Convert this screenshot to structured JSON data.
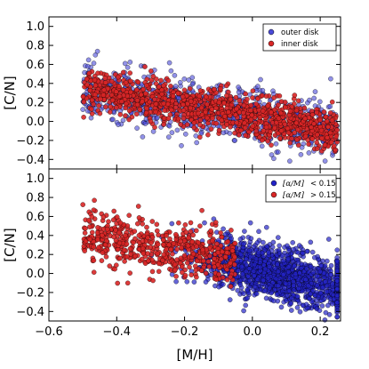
{
  "chart_data": [
    {
      "type": "scatter",
      "panel": "top",
      "ylabel": "[C/N]",
      "xlim": [
        -0.6,
        0.26
      ],
      "ylim": [
        -0.5,
        1.1
      ],
      "y_ticks": [
        "−0.4",
        "−0.2",
        "0.0",
        "0.2",
        "0.4",
        "0.6",
        "0.8",
        "1.0"
      ],
      "y_tick_values": [
        -0.4,
        -0.2,
        0.0,
        0.2,
        0.4,
        0.6,
        0.8,
        1.0
      ],
      "grid": false,
      "legend_position": "top-right",
      "series": [
        {
          "name": "outer disk",
          "color": "#4a4ad9",
          "alpha": 0.6,
          "count": 900,
          "x_range": [
            -0.5,
            0.25
          ],
          "trend": {
            "slope": -0.55,
            "intercept": 0.05
          },
          "scatter_sd": 0.14
        },
        {
          "name": "inner disk",
          "color": "#d92626",
          "alpha": 0.9,
          "count": 1100,
          "x_range": [
            -0.5,
            0.25
          ],
          "trend": {
            "slope": -0.6,
            "intercept": 0.05
          },
          "scatter_sd": 0.11
        }
      ]
    },
    {
      "type": "scatter",
      "panel": "bottom",
      "xlabel": "[M/H]",
      "ylabel": "[C/N]",
      "xlim": [
        -0.6,
        0.26
      ],
      "ylim": [
        -0.5,
        1.1
      ],
      "x_ticks": [
        "−0.6",
        "−0.4",
        "−0.2",
        "0.0",
        "0.2"
      ],
      "x_tick_values": [
        -0.6,
        -0.4,
        -0.2,
        0.0,
        0.2
      ],
      "y_ticks": [
        "−0.4",
        "−0.2",
        "0.0",
        "0.2",
        "0.4",
        "0.6",
        "0.8",
        "1.0"
      ],
      "y_tick_values": [
        -0.4,
        -0.2,
        0.0,
        0.2,
        0.4,
        0.6,
        0.8,
        1.0
      ],
      "grid": false,
      "legend_position": "top-right",
      "series": [
        {
          "name_math": "[α/M]",
          "name_rel": "< 0.15",
          "color": "#2323c8",
          "alpha": 0.7,
          "count": 1500,
          "x_range": [
            -0.25,
            0.25
          ],
          "trend": {
            "slope": -0.7,
            "intercept": 0.05
          },
          "scatter_sd": 0.14
        },
        {
          "name_math": "[α/M]",
          "name_rel": "> 0.15",
          "color": "#d92626",
          "alpha": 0.9,
          "count": 550,
          "x_range": [
            -0.5,
            -0.05
          ],
          "trend": {
            "slope": -0.55,
            "intercept": 0.12
          },
          "scatter_sd": 0.13
        }
      ]
    }
  ]
}
